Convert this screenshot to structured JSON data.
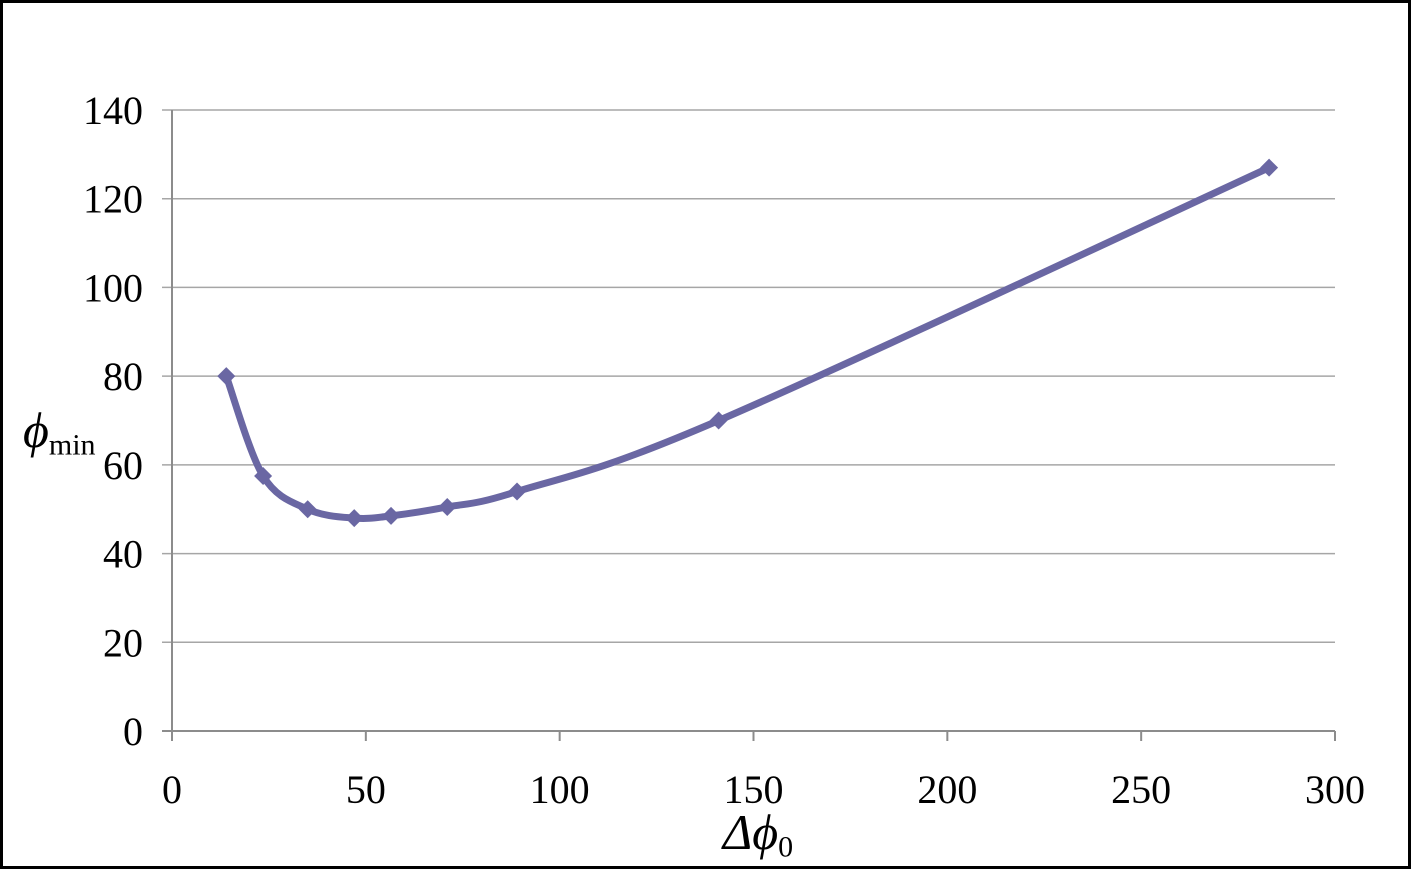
{
  "chart_data": {
    "type": "line",
    "title": "",
    "legend": "none",
    "grid": "horizontal",
    "smooth": true,
    "marker": "diamond",
    "series": [
      {
        "name": "phi_min",
        "x": [
          14,
          23.5,
          35,
          47,
          56.5,
          71,
          89,
          141,
          283
        ],
        "y": [
          80,
          57.5,
          50,
          48,
          48.5,
          50.5,
          54,
          70,
          127
        ]
      }
    ],
    "x_ticks": [
      0,
      50,
      100,
      150,
      200,
      250,
      300
    ],
    "y_ticks": [
      0,
      20,
      40,
      60,
      80,
      100,
      120,
      140
    ],
    "xlim": [
      0,
      300
    ],
    "ylim": [
      0,
      140
    ],
    "xlabel_main": "Δϕ",
    "xlabel_sub": "0",
    "ylabel_main": "ϕ",
    "ylabel_sub": "min",
    "line_color": "#6a67a3",
    "gridline_color": "#a6a6a6",
    "axis_color": "#8c8c8c",
    "text_color": "#000000"
  }
}
